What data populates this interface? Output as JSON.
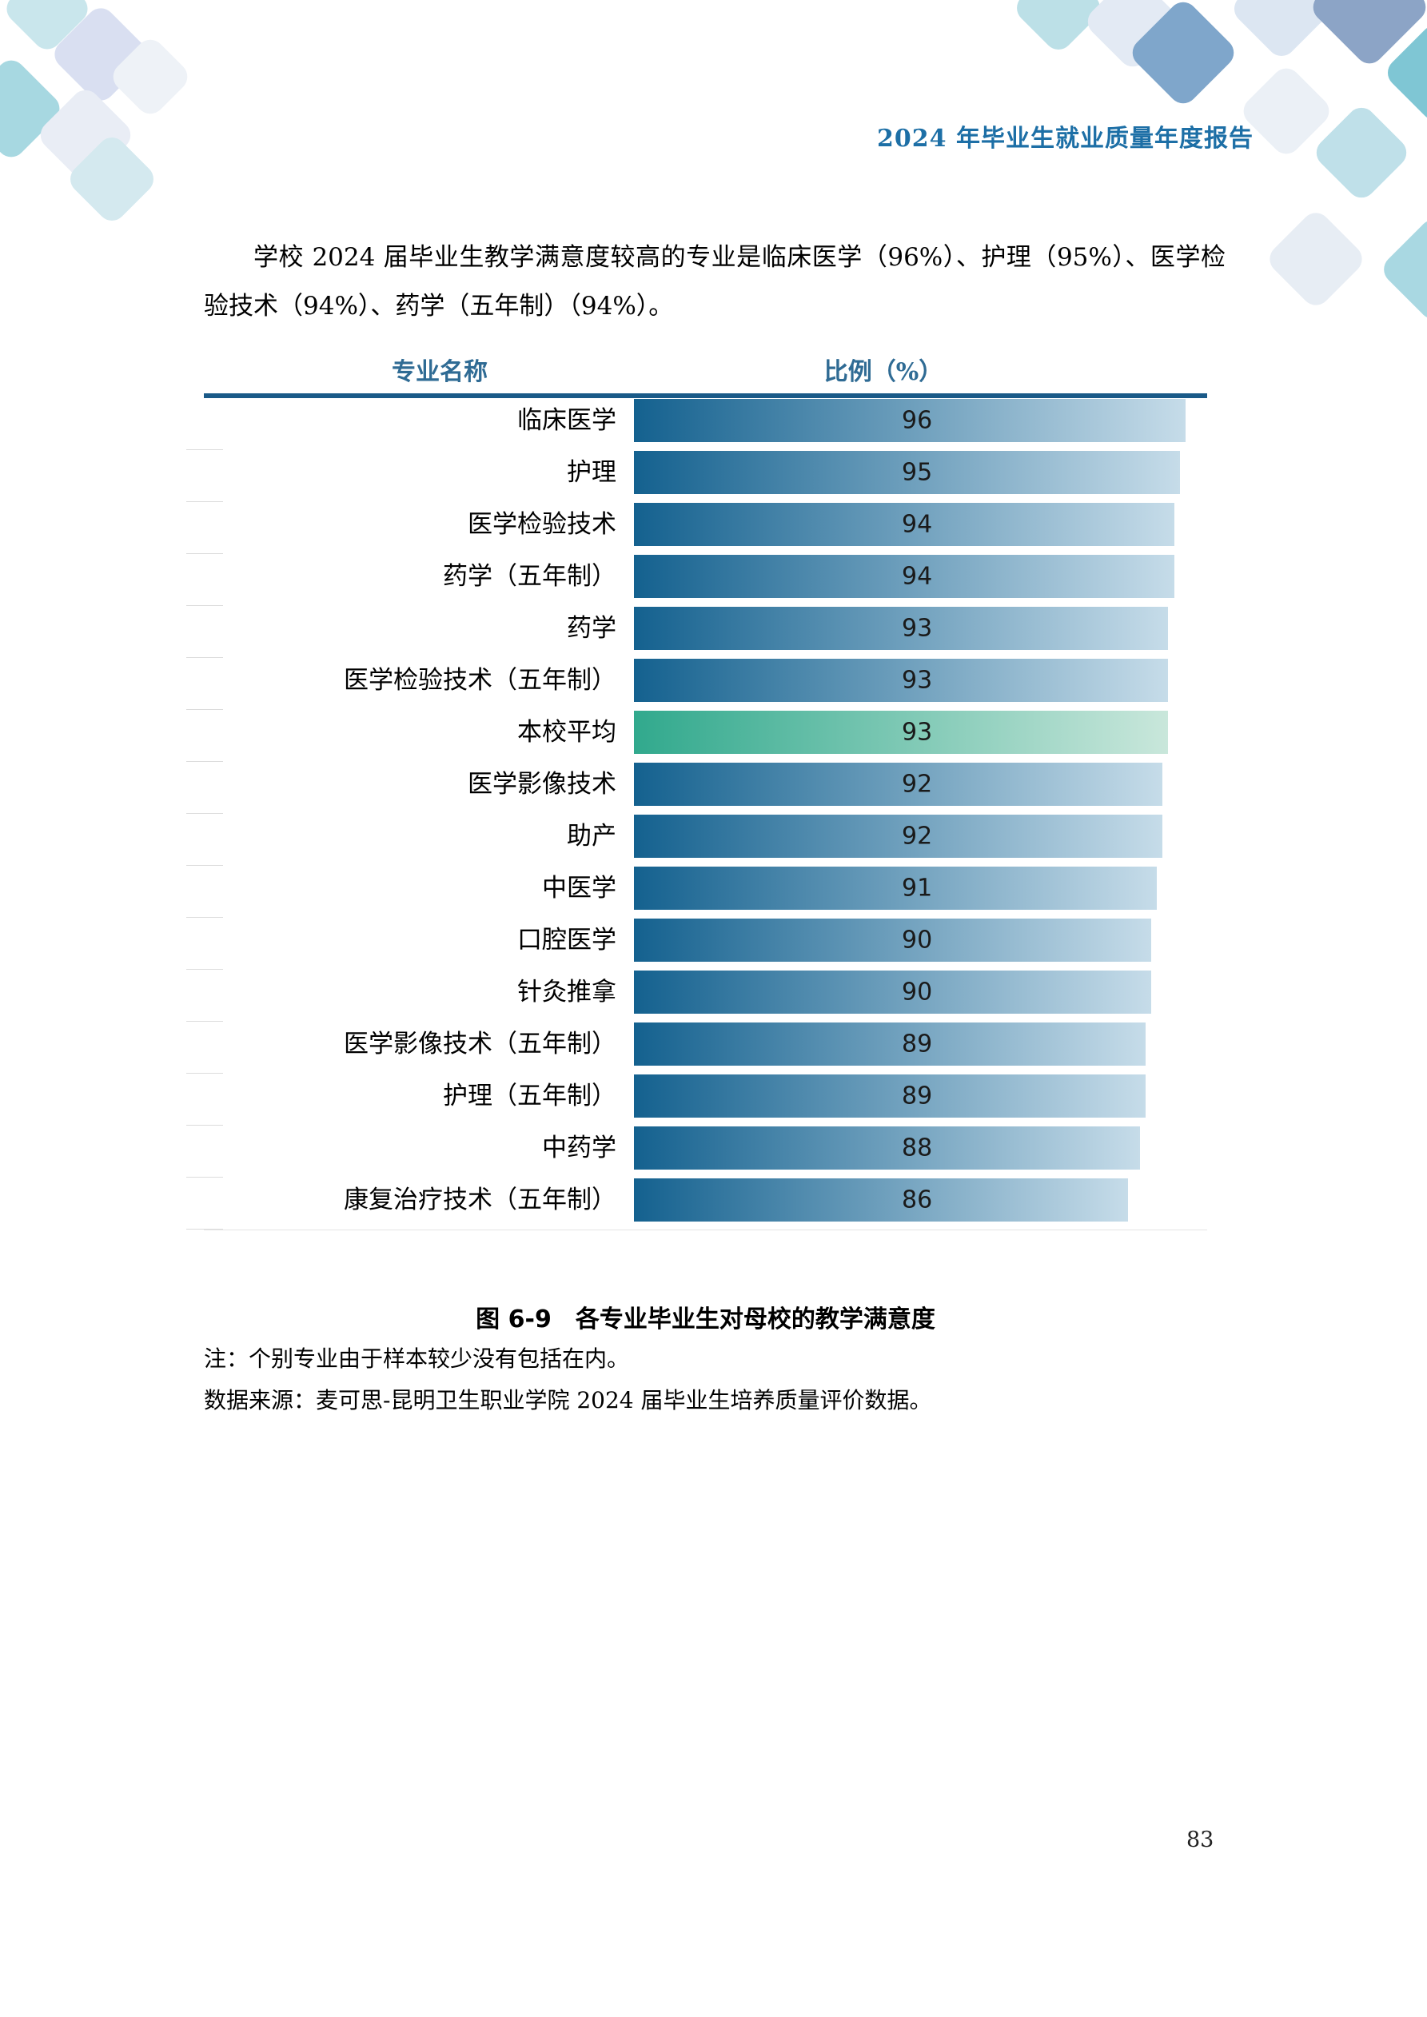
{
  "page": {
    "header_title": "2024 年毕业生就业质量年度报告",
    "page_number": "83"
  },
  "paragraph": "学校 2024 届毕业生教学满意度较高的专业是临床医学（96%）、护理（95%）、医学检验技术（94%）、药学（五年制）（94%）。",
  "chart_data": {
    "type": "bar",
    "orientation": "horizontal",
    "title": "各专业毕业生对母校的教学满意度",
    "column_headers": {
      "category": "专业名称",
      "value": "比例（%）"
    },
    "categories": [
      "临床医学",
      "护理",
      "医学检验技术",
      "药学（五年制）",
      "药学",
      "医学检验技术（五年制）",
      "本校平均",
      "医学影像技术",
      "助产",
      "中医学",
      "口腔医学",
      "针灸推拿",
      "医学影像技术（五年制）",
      "护理（五年制）",
      "中药学",
      "康复治疗技术（五年制）"
    ],
    "values": [
      96,
      95,
      94,
      94,
      93,
      93,
      93,
      92,
      92,
      91,
      90,
      90,
      89,
      89,
      88,
      86
    ],
    "highlight_index": 6,
    "highlight_category": "本校平均",
    "value_axis_max": 96,
    "legend": "none",
    "grid": "off",
    "colors": {
      "bar_gradient_start": "#14618f",
      "bar_gradient_end": "#c6dce9",
      "highlight_gradient_start": "#31a98d",
      "highlight_gradient_end": "#c9e7db",
      "header_rule": "#1a5a88",
      "header_text": "#2f6b94",
      "title_blue": "#1d6fa6"
    }
  },
  "caption": {
    "figure_label": "图 6-9",
    "figure_title": "各专业毕业生对母校的教学满意度"
  },
  "notes": {
    "note": "注：个别专业由于样本较少没有包括在内。",
    "source": "数据来源：麦可思-昆明卫生职业学院 2024 届毕业生培养质量评价数据。"
  }
}
